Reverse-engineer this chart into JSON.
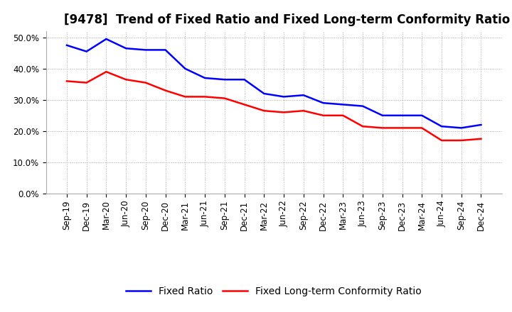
{
  "title": "[9478]  Trend of Fixed Ratio and Fixed Long-term Conformity Ratio",
  "x_labels": [
    "Sep-19",
    "Dec-19",
    "Mar-20",
    "Jun-20",
    "Sep-20",
    "Dec-20",
    "Mar-21",
    "Jun-21",
    "Sep-21",
    "Dec-21",
    "Mar-22",
    "Jun-22",
    "Sep-22",
    "Dec-22",
    "Mar-23",
    "Jun-23",
    "Sep-23",
    "Dec-23",
    "Mar-24",
    "Jun-24",
    "Sep-24",
    "Dec-24"
  ],
  "fixed_ratio": [
    47.5,
    45.5,
    49.5,
    46.5,
    46.0,
    46.0,
    40.0,
    37.0,
    36.5,
    36.5,
    32.0,
    31.0,
    31.5,
    29.0,
    28.5,
    28.0,
    25.0,
    25.0,
    25.0,
    21.5,
    21.0,
    22.0
  ],
  "fixed_lt_ratio": [
    36.0,
    35.5,
    39.0,
    36.5,
    35.5,
    33.0,
    31.0,
    31.0,
    30.5,
    28.5,
    26.5,
    26.0,
    26.5,
    25.0,
    25.0,
    21.5,
    21.0,
    21.0,
    21.0,
    17.0,
    17.0,
    17.5
  ],
  "fixed_ratio_color": "#0000FF",
  "fixed_lt_ratio_color": "#FF0000",
  "ylim": [
    0,
    52
  ],
  "yticks": [
    0.0,
    10.0,
    20.0,
    30.0,
    40.0,
    50.0
  ],
  "background_color": "#FFFFFF",
  "plot_bg_color": "#FFFFFF",
  "grid_color": "#AAAAAA",
  "title_fontsize": 12,
  "legend_fontsize": 10,
  "tick_fontsize": 8.5
}
